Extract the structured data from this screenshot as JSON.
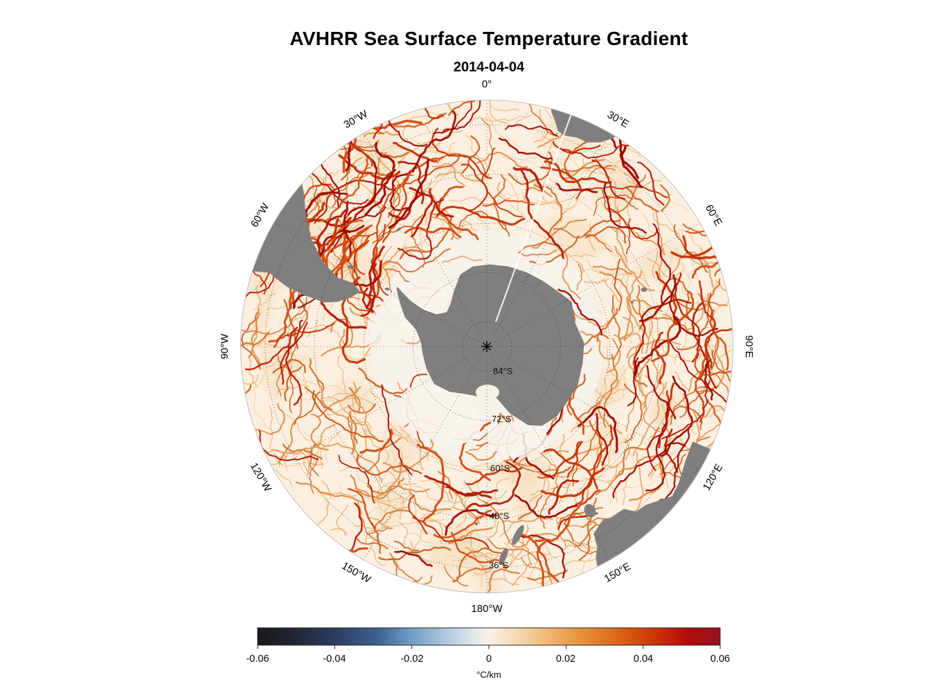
{
  "title": "AVHRR Sea Surface Temperature Gradient",
  "subtitle": "2014-04-04",
  "chart_data": {
    "type": "heatmap",
    "title": "AVHRR Sea Surface Temperature Gradient",
    "subtitle_date": "2014-04-04",
    "projection": "south polar stereographic",
    "variable": "sea surface temperature gradient magnitude",
    "units": "°C/km",
    "ocean_background": "#fcefdf",
    "ice_zone_color": "#f7f2ea",
    "land_color": "#7f7f7f",
    "graticule": {
      "style": "dotted",
      "parallels_deg_s": [
        84,
        72,
        60,
        48,
        36
      ],
      "meridian_step_deg": 30,
      "outer_latitude_deg_s": 30
    },
    "parallel_labels": [
      "84°S",
      "72°S",
      "60°S",
      "48°S",
      "36°S"
    ],
    "meridian_labels": [
      "0°",
      "30°E",
      "60°E",
      "90°E",
      "120°E",
      "150°E",
      "180°W",
      "150°W",
      "120°W",
      "90°W",
      "60°W",
      "30°W"
    ],
    "seam_line_lon_deg": 20,
    "land_features": [
      "Antarctica",
      "South America",
      "Africa",
      "Australia",
      "Tasmania",
      "New Zealand",
      "Falkland Islands",
      "South Georgia",
      "Kerguelen"
    ],
    "colorbar": {
      "orientation": "horizontal",
      "min": -0.06,
      "max": 0.06,
      "ticks": [
        "-0.06",
        "-0.04",
        "-0.02",
        "0",
        "0.02",
        "0.04",
        "0.06"
      ],
      "label": "°C/km",
      "colors": [
        {
          "offset": 0.0,
          "color": "#1a1a1a"
        },
        {
          "offset": 0.07,
          "color": "#21242f"
        },
        {
          "offset": 0.16,
          "color": "#2b3a5e"
        },
        {
          "offset": 0.26,
          "color": "#3c628f"
        },
        {
          "offset": 0.33,
          "color": "#6f9cc3"
        },
        {
          "offset": 0.4,
          "color": "#a8c4dd"
        },
        {
          "offset": 0.46,
          "color": "#dce4e8"
        },
        {
          "offset": 0.5,
          "color": "#f7f1e7"
        },
        {
          "offset": 0.55,
          "color": "#f6dfbd"
        },
        {
          "offset": 0.62,
          "color": "#f1bc79"
        },
        {
          "offset": 0.7,
          "color": "#e8913b"
        },
        {
          "offset": 0.78,
          "color": "#dc6614"
        },
        {
          "offset": 0.86,
          "color": "#cb3505"
        },
        {
          "offset": 0.93,
          "color": "#b10b0b"
        },
        {
          "offset": 1.0,
          "color": "#971222"
        }
      ]
    }
  }
}
